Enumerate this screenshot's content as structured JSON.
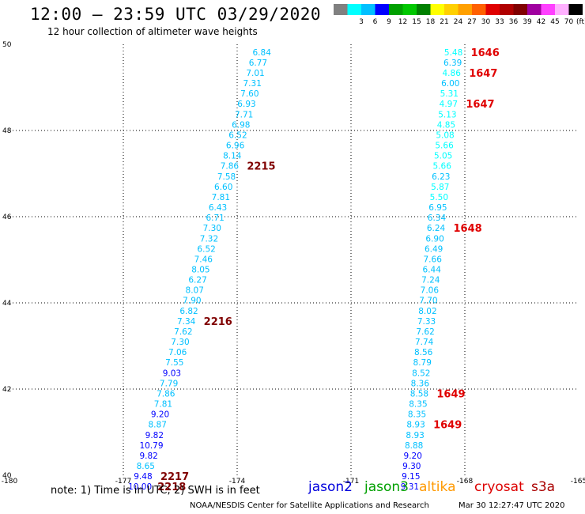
{
  "header": {
    "title": "12:00 – 23:59 UTC 03/29/2020",
    "subtitle": "12 hour collection of altimeter wave heights"
  },
  "legend": {
    "unit_label": "(ft)",
    "levels": [
      {
        "label": "",
        "color": "#808080"
      },
      {
        "label": "3",
        "color": "#00ffff"
      },
      {
        "label": "6",
        "color": "#00c0ff"
      },
      {
        "label": "9",
        "color": "#0000ff"
      },
      {
        "label": "12",
        "color": "#00a000"
      },
      {
        "label": "15",
        "color": "#00c800"
      },
      {
        "label": "18",
        "color": "#008000"
      },
      {
        "label": "21",
        "color": "#ffff00"
      },
      {
        "label": "24",
        "color": "#ffd000"
      },
      {
        "label": "27",
        "color": "#ffa000"
      },
      {
        "label": "30",
        "color": "#ff6000"
      },
      {
        "label": "33",
        "color": "#e00000"
      },
      {
        "label": "36",
        "color": "#b00000"
      },
      {
        "label": "39",
        "color": "#800000"
      },
      {
        "label": "42",
        "color": "#a000a0"
      },
      {
        "label": "45",
        "color": "#ff40ff"
      },
      {
        "label": "70",
        "color": "#ffb0ff"
      },
      {
        "label": "",
        "color": "#000000"
      }
    ]
  },
  "footer": {
    "note": "note:  1) Time is in UTC;  2) SWH is in feet",
    "sources": "NOAA/NESDIS Center for Satellite Applications and Research",
    "timestamp": "Mar 30 12:27:47 UTC 2020",
    "missions": [
      {
        "name": "jason2",
        "color": "#0000dd"
      },
      {
        "name": "jason3",
        "color": "#00a000"
      },
      {
        "name": "altika",
        "color": "#ff9900"
      },
      {
        "name": "cryosat",
        "color": "#dd0000"
      },
      {
        "name": "s3a",
        "color": "#aa0000"
      }
    ]
  },
  "chart_data": {
    "type": "scatter",
    "xlabel": "",
    "ylabel": "",
    "xlim": [
      -180,
      -165
    ],
    "ylim": [
      40,
      50
    ],
    "xticks": [
      "-180",
      "-177",
      "-174",
      "-171",
      "-168",
      "-165"
    ],
    "yticks": [
      "40",
      "42",
      "44",
      "46",
      "48",
      "50"
    ],
    "grid": true,
    "tracks": [
      {
        "name": "",
        "points": [
          {
            "lon": -173.35,
            "lat": 49.82,
            "swh": "6.84"
          },
          {
            "lon": -173.45,
            "lat": 49.58,
            "swh": "6.77"
          },
          {
            "lon": -173.52,
            "lat": 49.34,
            "swh": "7.01"
          },
          {
            "lon": -173.6,
            "lat": 49.1,
            "swh": "7.31"
          },
          {
            "lon": -173.67,
            "lat": 48.86,
            "swh": "7.60"
          },
          {
            "lon": -173.75,
            "lat": 48.62,
            "swh": "6.93"
          },
          {
            "lon": -173.82,
            "lat": 48.38,
            "swh": "7.71"
          },
          {
            "lon": -173.9,
            "lat": 48.14,
            "swh": "6.98"
          },
          {
            "lon": -173.98,
            "lat": 47.9,
            "swh": "6.52"
          },
          {
            "lon": -174.05,
            "lat": 47.66,
            "swh": "6.96"
          },
          {
            "lon": -174.13,
            "lat": 47.42,
            "swh": "8.14"
          },
          {
            "lon": -174.2,
            "lat": 47.18,
            "swh": "7.86"
          },
          {
            "lon": -174.28,
            "lat": 46.94,
            "swh": "7.58"
          },
          {
            "lon": -174.36,
            "lat": 46.7,
            "swh": "6.60"
          },
          {
            "lon": -174.43,
            "lat": 46.46,
            "swh": "7.81"
          },
          {
            "lon": -174.51,
            "lat": 46.22,
            "swh": "6.43"
          },
          {
            "lon": -174.58,
            "lat": 45.98,
            "swh": "6.71"
          },
          {
            "lon": -174.66,
            "lat": 45.74,
            "swh": "7.30"
          },
          {
            "lon": -174.74,
            "lat": 45.5,
            "swh": "7.32"
          },
          {
            "lon": -174.81,
            "lat": 45.26,
            "swh": "6.52"
          },
          {
            "lon": -174.89,
            "lat": 45.02,
            "swh": "7.46"
          },
          {
            "lon": -174.96,
            "lat": 44.78,
            "swh": "8.05"
          },
          {
            "lon": -175.04,
            "lat": 44.54,
            "swh": "6.27"
          },
          {
            "lon": -175.12,
            "lat": 44.3,
            "swh": "8.07"
          },
          {
            "lon": -175.19,
            "lat": 44.06,
            "swh": "7.90"
          },
          {
            "lon": -175.27,
            "lat": 43.82,
            "swh": "6.82"
          },
          {
            "lon": -175.34,
            "lat": 43.58,
            "swh": "7.34"
          },
          {
            "lon": -175.42,
            "lat": 43.34,
            "swh": "7.62"
          },
          {
            "lon": -175.5,
            "lat": 43.1,
            "swh": "7.30"
          },
          {
            "lon": -175.57,
            "lat": 42.86,
            "swh": "7.06"
          },
          {
            "lon": -175.65,
            "lat": 42.62,
            "swh": "7.55"
          },
          {
            "lon": -175.72,
            "lat": 42.38,
            "swh": "9.03"
          },
          {
            "lon": -175.8,
            "lat": 42.14,
            "swh": "7.79"
          },
          {
            "lon": -175.88,
            "lat": 41.9,
            "swh": "7.86"
          },
          {
            "lon": -175.95,
            "lat": 41.66,
            "swh": "7.81"
          },
          {
            "lon": -176.03,
            "lat": 41.42,
            "swh": "9.20"
          },
          {
            "lon": -176.1,
            "lat": 41.18,
            "swh": "8.87"
          },
          {
            "lon": -176.18,
            "lat": 40.94,
            "swh": "9.82"
          },
          {
            "lon": -176.26,
            "lat": 40.7,
            "swh": "10.79"
          },
          {
            "lon": -176.33,
            "lat": 40.46,
            "swh": "9.82"
          },
          {
            "lon": -176.41,
            "lat": 40.22,
            "swh": "8.65"
          },
          {
            "lon": -176.48,
            "lat": 39.98,
            "swh": "9.48"
          },
          {
            "lon": -176.56,
            "lat": 39.74,
            "swh": "10.00"
          }
        ],
        "time_labels": [
          {
            "lon": -174.2,
            "lat": 47.18,
            "label": "2215"
          },
          {
            "lon": -175.34,
            "lat": 43.58,
            "label": "2216"
          },
          {
            "lon": -176.48,
            "lat": 39.98,
            "label": "2217"
          },
          {
            "lon": -176.56,
            "lat": 39.74,
            "label": "2218"
          }
        ]
      },
      {
        "name": "",
        "points": [
          {
            "lon": -168.3,
            "lat": 49.82,
            "swh": "5.48"
          },
          {
            "lon": -168.32,
            "lat": 49.58,
            "swh": "6.39"
          },
          {
            "lon": -168.35,
            "lat": 49.34,
            "swh": "4.86"
          },
          {
            "lon": -168.38,
            "lat": 49.1,
            "swh": "6.00"
          },
          {
            "lon": -168.41,
            "lat": 48.86,
            "swh": "5.31"
          },
          {
            "lon": -168.43,
            "lat": 48.62,
            "swh": "4.97"
          },
          {
            "lon": -168.46,
            "lat": 48.38,
            "swh": "5.13"
          },
          {
            "lon": -168.49,
            "lat": 48.14,
            "swh": "4.85"
          },
          {
            "lon": -168.52,
            "lat": 47.9,
            "swh": "5.08"
          },
          {
            "lon": -168.54,
            "lat": 47.66,
            "swh": "5.66"
          },
          {
            "lon": -168.57,
            "lat": 47.42,
            "swh": "5.05"
          },
          {
            "lon": -168.6,
            "lat": 47.18,
            "swh": "5.66"
          },
          {
            "lon": -168.63,
            "lat": 46.94,
            "swh": "6.23"
          },
          {
            "lon": -168.65,
            "lat": 46.7,
            "swh": "5.87"
          },
          {
            "lon": -168.68,
            "lat": 46.46,
            "swh": "5.50"
          },
          {
            "lon": -168.71,
            "lat": 46.22,
            "swh": "6.95"
          },
          {
            "lon": -168.74,
            "lat": 45.98,
            "swh": "6.34"
          },
          {
            "lon": -168.76,
            "lat": 45.74,
            "swh": "6.24"
          },
          {
            "lon": -168.79,
            "lat": 45.5,
            "swh": "6.90"
          },
          {
            "lon": -168.82,
            "lat": 45.26,
            "swh": "6.49"
          },
          {
            "lon": -168.85,
            "lat": 45.02,
            "swh": "7.66"
          },
          {
            "lon": -168.87,
            "lat": 44.78,
            "swh": "6.44"
          },
          {
            "lon": -168.9,
            "lat": 44.54,
            "swh": "7.24"
          },
          {
            "lon": -168.93,
            "lat": 44.3,
            "swh": "7.06"
          },
          {
            "lon": -168.96,
            "lat": 44.06,
            "swh": "7.70"
          },
          {
            "lon": -168.98,
            "lat": 43.82,
            "swh": "8.02"
          },
          {
            "lon": -169.01,
            "lat": 43.58,
            "swh": "7.33"
          },
          {
            "lon": -169.04,
            "lat": 43.34,
            "swh": "7.62"
          },
          {
            "lon": -169.07,
            "lat": 43.1,
            "swh": "7.74"
          },
          {
            "lon": -169.09,
            "lat": 42.86,
            "swh": "8.56"
          },
          {
            "lon": -169.12,
            "lat": 42.62,
            "swh": "8.79"
          },
          {
            "lon": -169.15,
            "lat": 42.38,
            "swh": "8.52"
          },
          {
            "lon": -169.18,
            "lat": 42.14,
            "swh": "8.36"
          },
          {
            "lon": -169.2,
            "lat": 41.9,
            "swh": "8.58"
          },
          {
            "lon": -169.23,
            "lat": 41.66,
            "swh": "8.35"
          },
          {
            "lon": -169.26,
            "lat": 41.42,
            "swh": "8.35"
          },
          {
            "lon": -169.29,
            "lat": 41.18,
            "swh": "8.93"
          },
          {
            "lon": -169.31,
            "lat": 40.94,
            "swh": "8.93"
          },
          {
            "lon": -169.34,
            "lat": 40.7,
            "swh": "8.88"
          },
          {
            "lon": -169.37,
            "lat": 40.46,
            "swh": "9.20"
          },
          {
            "lon": -169.4,
            "lat": 40.22,
            "swh": "9.30"
          },
          {
            "lon": -169.42,
            "lat": 39.98,
            "swh": "9.15"
          },
          {
            "lon": -169.45,
            "lat": 39.74,
            "swh": "9.31"
          }
        ],
        "time_labels": [
          {
            "lon": -168.3,
            "lat": 49.82,
            "label": "1646"
          },
          {
            "lon": -168.35,
            "lat": 49.34,
            "label": "1647"
          },
          {
            "lon": -168.43,
            "lat": 48.62,
            "label": "1647"
          },
          {
            "lon": -168.76,
            "lat": 45.74,
            "label": "1648"
          },
          {
            "lon": -169.2,
            "lat": 41.9,
            "label": "1649"
          },
          {
            "lon": -169.29,
            "lat": 41.18,
            "label": "1649"
          }
        ]
      }
    ]
  }
}
